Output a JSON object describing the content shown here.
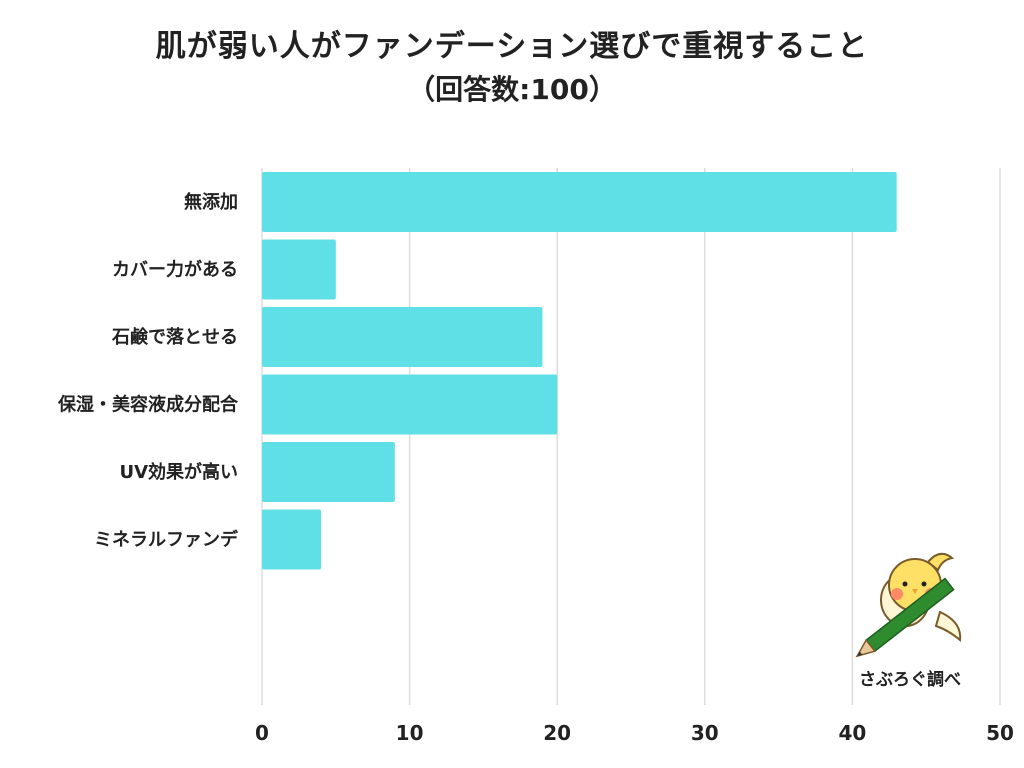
{
  "chart_data": {
    "type": "bar",
    "orientation": "horizontal",
    "title": "肌が弱い人がファンデーション選びで重視すること",
    "subtitle": "（回答数:100）",
    "categories": [
      "無添加",
      "カバー力がある",
      "石鹸で落とせる",
      "保湿・美容液成分配合",
      "UV効果が高い",
      "ミネラルファンデ"
    ],
    "values": [
      43,
      5,
      19,
      20,
      9,
      4
    ],
    "xlim": [
      0,
      50
    ],
    "xticks": [
      0,
      10,
      20,
      30,
      40,
      50
    ],
    "grid": true,
    "bar_color": "#5ee0e6",
    "grid_color": "#dddddd"
  },
  "credit": {
    "text": "さぶろぐ調べ",
    "mascot_icon": "bird-with-pencil-icon"
  }
}
